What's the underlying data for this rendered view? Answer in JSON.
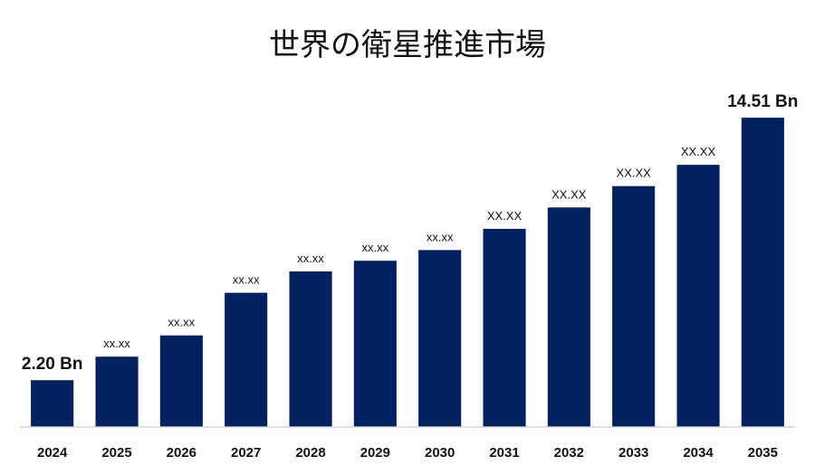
{
  "title": "世界の衛星推進市場",
  "chart_data": {
    "type": "bar",
    "title": "世界の衛星推進市場",
    "xlabel": "",
    "ylabel": "",
    "categories": [
      "2024",
      "2025",
      "2026",
      "2027",
      "2028",
      "2029",
      "2030",
      "2031",
      "2032",
      "2033",
      "2034",
      "2035"
    ],
    "values": [
      2.2,
      3.3,
      4.3,
      6.3,
      7.3,
      7.8,
      8.3,
      9.3,
      10.3,
      11.3,
      12.3,
      14.51
    ],
    "data_labels": [
      "2.20 Bn",
      "xx.xx",
      "xx.xx",
      "xx.xx",
      "xx.xx",
      "xx.xx",
      "xx.xx",
      "XX.XX",
      "XX.XX",
      "XX.XX",
      "XX.XX",
      "14.51 Bn"
    ],
    "ylim": [
      0,
      16
    ],
    "grid": false,
    "legend": "none",
    "colors": {
      "bar": "#03205f",
      "axis": "#d0d0d0",
      "text": "#111111"
    }
  }
}
